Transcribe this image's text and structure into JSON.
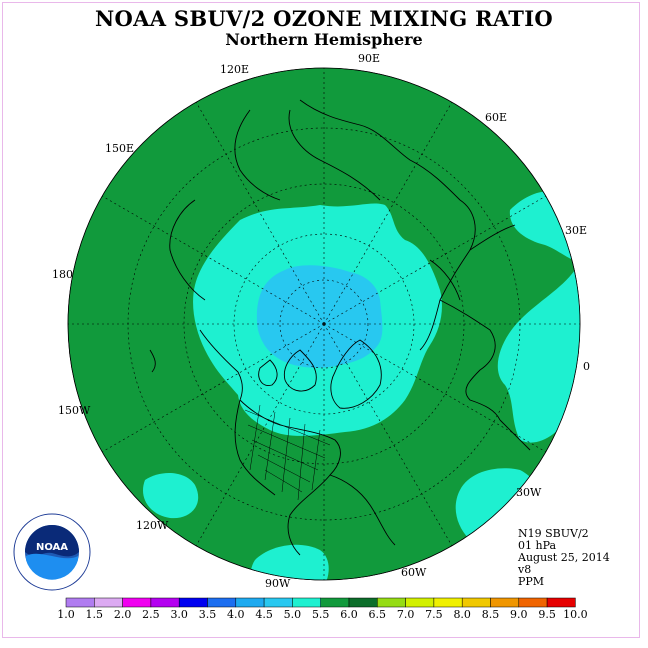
{
  "title": "NOAA SBUV/2 OZONE MIXING RATIO",
  "subtitle": "Northern Hemisphere",
  "info": {
    "instrument": "N19 SBUV/2",
    "level": "01 hPa",
    "date": "August 25, 2014",
    "version": "v8",
    "units": "PPM"
  },
  "logo": {
    "text": "NOAA",
    "ring_text": "NATIONAL OCEANIC AND ATMOSPHERIC ADMINISTRATION · U.S. DEPARTMENT OF COMMERCE"
  },
  "longitude_labels": [
    "90E",
    "60E",
    "30E",
    "0",
    "30W",
    "60W",
    "90W",
    "120W",
    "150W",
    "180",
    "150E",
    "120E"
  ],
  "colorbar": {
    "ticks": [
      "1.0",
      "1.5",
      "2.0",
      "2.5",
      "3.0",
      "3.5",
      "4.0",
      "4.5",
      "5.0",
      "5.5",
      "6.0",
      "6.5",
      "7.0",
      "7.5",
      "8.0",
      "8.5",
      "9.0",
      "9.5",
      "10.0"
    ],
    "colors": [
      "#b07cf0",
      "#dcaaf2",
      "#f000f0",
      "#b400f0",
      "#0000f0",
      "#1c6ef0",
      "#1eaaf0",
      "#28c8f0",
      "#1ef0d0",
      "#119a3c",
      "#0c6e2a",
      "#96dc14",
      "#d2f000",
      "#f0f000",
      "#f0c800",
      "#f09600",
      "#f06400",
      "#e60000",
      "#8c5a3c"
    ]
  },
  "legend_colors": {
    "band_4_5": "#28c8f0",
    "band_5_0": "#1ef0d0",
    "band_5_5": "#119a3c"
  }
}
